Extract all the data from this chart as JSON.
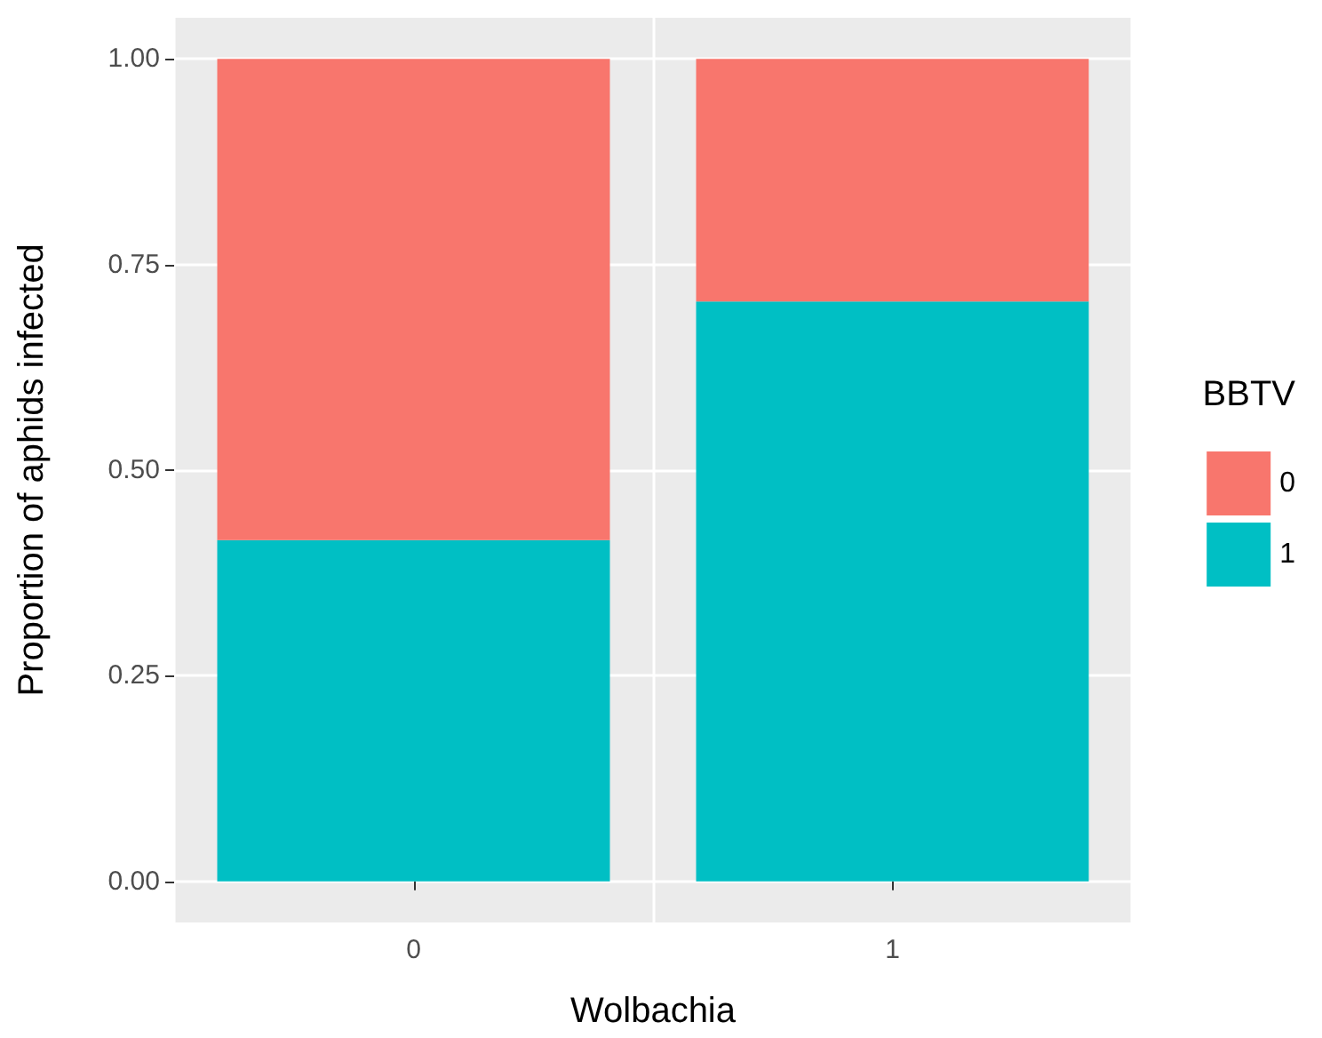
{
  "chart_data": {
    "type": "bar",
    "stacked": true,
    "xlabel": "Wolbachia",
    "ylabel": "Proportion of aphids infected",
    "legend_title": "BBTV",
    "legend": "right",
    "categories": [
      "0",
      "1"
    ],
    "series": [
      {
        "name": "1",
        "color": "#00bfc4",
        "values": [
          0.415,
          0.705
        ]
      },
      {
        "name": "0",
        "color": "#f8766d",
        "values": [
          0.585,
          0.295
        ]
      }
    ],
    "ylim": [
      -0.05,
      1.05
    ],
    "yticks": [
      {
        "value": 0,
        "label": "0.00"
      },
      {
        "value": 0.25,
        "label": "0.25"
      },
      {
        "value": 0.5,
        "label": "0.50"
      },
      {
        "value": 0.75,
        "label": "0.75"
      },
      {
        "value": 1,
        "label": "1.00"
      }
    ],
    "grid": true
  }
}
